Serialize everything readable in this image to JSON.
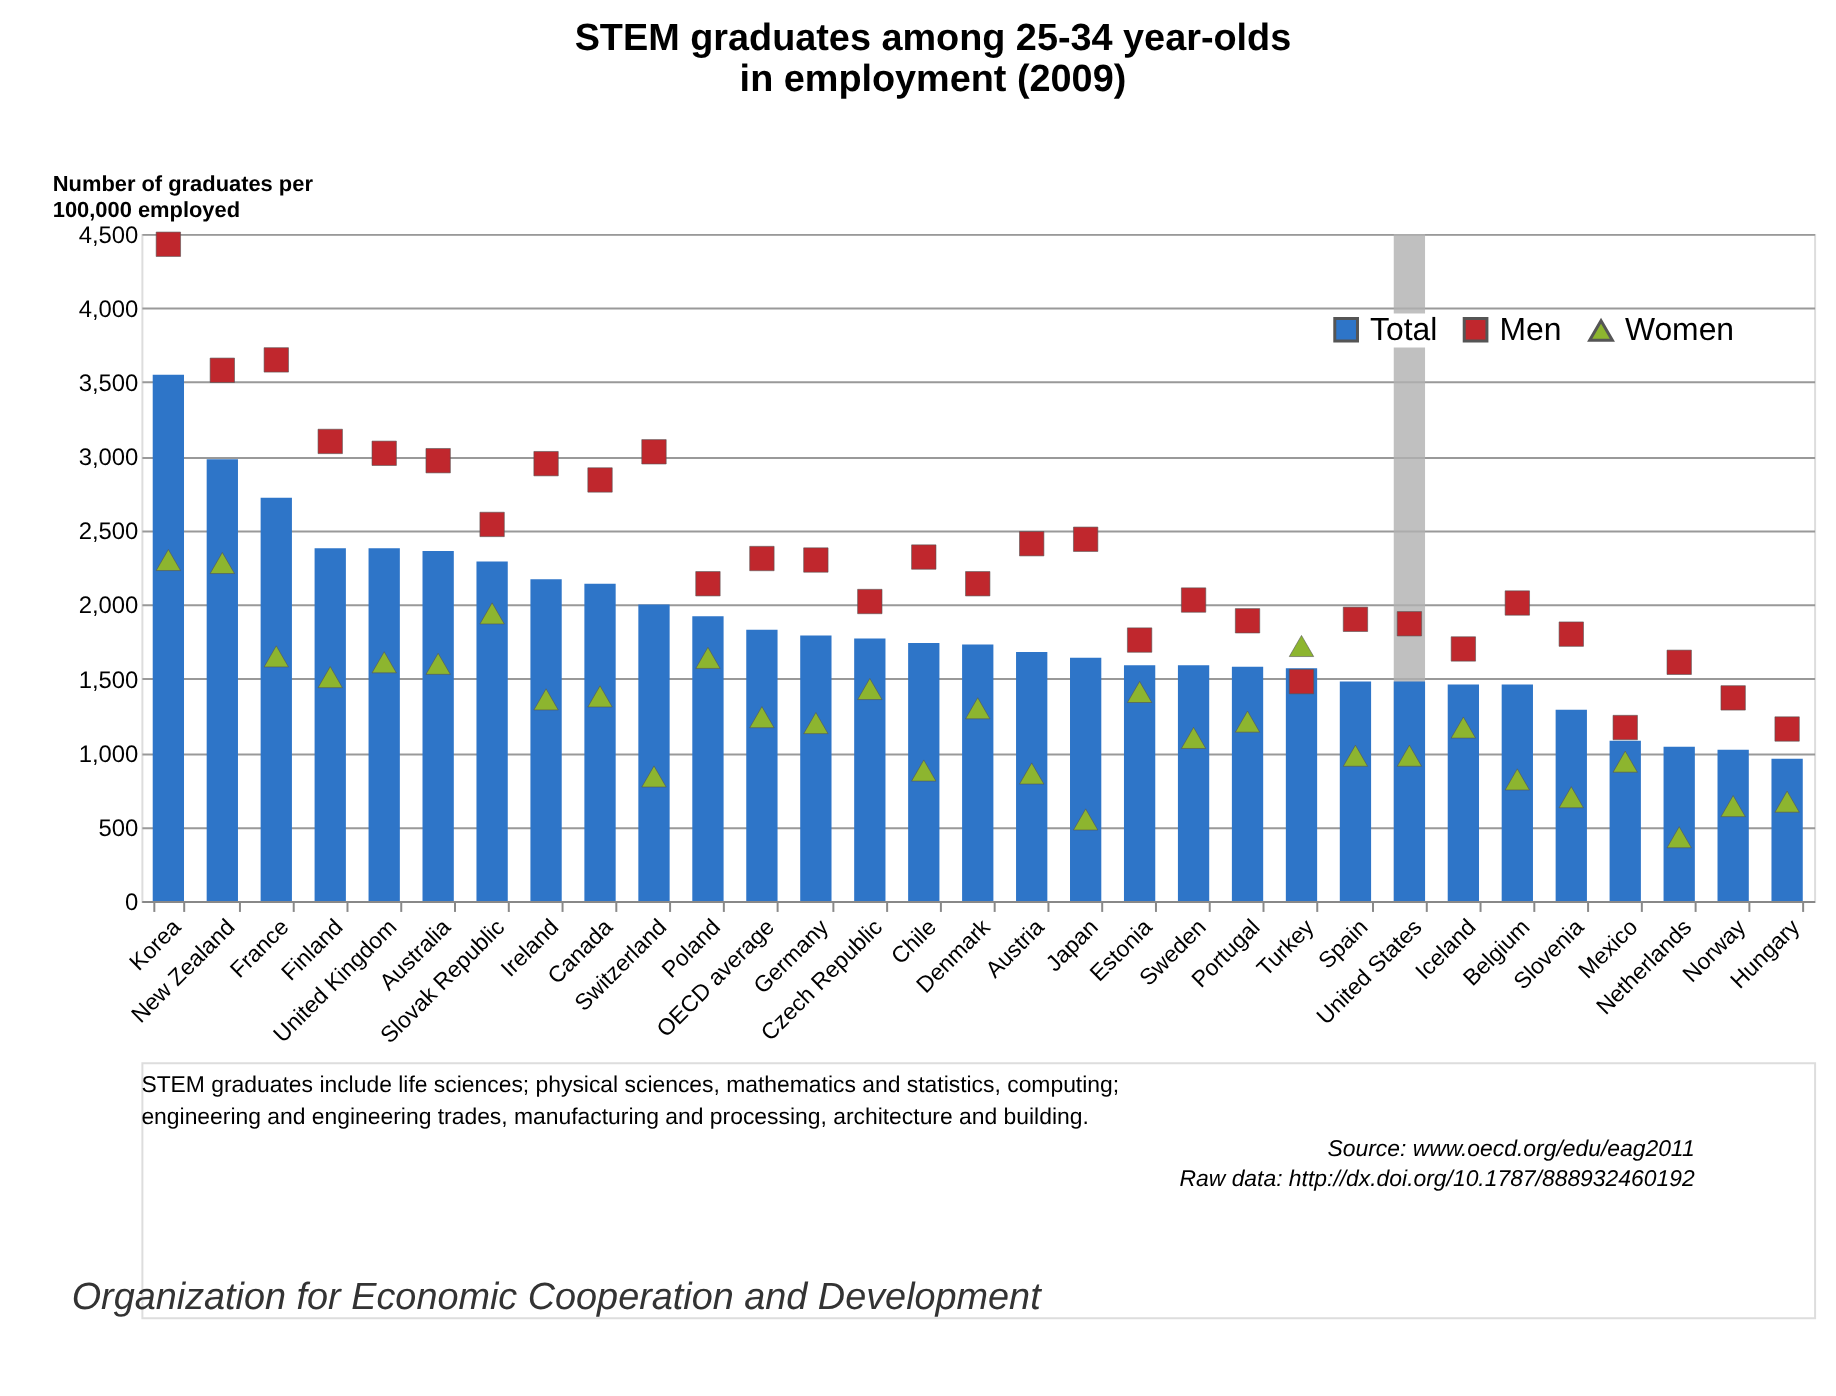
{
  "chart_data": {
    "type": "bar",
    "title": [
      "STEM graduates among 25-34 year-olds",
      "in employment (2009)"
    ],
    "ylabel": "Number of graduates per 100,000 employed",
    "categories": [
      "Korea",
      "New Zealand",
      "France",
      "Finland",
      "United Kingdom",
      "Australia",
      "Slovak Republic",
      "Ireland",
      "Canada",
      "Switzerland",
      "Poland",
      "OECD average",
      "Germany",
      "Czech Republic",
      "Chile",
      "Denmark",
      "Austria",
      "Japan",
      "Estonia",
      "Sweden",
      "Portugal",
      "Turkey",
      "Spain",
      "United States",
      "Iceland",
      "Belgium",
      "Slovenia",
      "Mexico",
      "Netherlands",
      "Norway",
      "Hungary"
    ],
    "series": [
      {
        "name": "Total",
        "color": "#2e75c8",
        "values": [
          3550,
          2980,
          2720,
          2380,
          2380,
          2360,
          2290,
          2170,
          2140,
          2000,
          1920,
          1830,
          1790,
          1770,
          1740,
          1730,
          1680,
          1640,
          1590,
          1590,
          1580,
          1570,
          1480,
          1480,
          1460,
          1460,
          1290,
          1080,
          1040,
          1020,
          960
        ]
      },
      {
        "name": "Men",
        "type": "scatter",
        "marker": "square",
        "color": "#c0272d",
        "values": [
          4430,
          3580,
          3650,
          3100,
          3020,
          2970,
          2540,
          2950,
          2840,
          3030,
          2140,
          2310,
          2300,
          2020,
          2320,
          2140,
          2410,
          2440,
          1760,
          2030,
          1890,
          1480,
          1900,
          1870,
          1700,
          2010,
          1800,
          1170,
          1610,
          1370,
          1160
        ]
      },
      {
        "name": "Women",
        "type": "scatter",
        "marker": "triangle",
        "color": "#8db52f",
        "values": [
          2300,
          2280,
          1650,
          1510,
          1610,
          1600,
          1940,
          1360,
          1380,
          840,
          1640,
          1240,
          1200,
          1430,
          880,
          1300,
          860,
          550,
          1410,
          1100,
          1210,
          1720,
          980,
          980,
          1170,
          820,
          700,
          940,
          430,
          640,
          670
        ]
      }
    ],
    "ylim": [
      0,
      4500
    ],
    "yticks": [
      {
        "value": 0,
        "label": "0"
      },
      {
        "value": 500,
        "label": "500"
      },
      {
        "value": 1000,
        "label": "1,000"
      },
      {
        "value": 1500,
        "label": "1,500"
      },
      {
        "value": 2000,
        "label": "2,000"
      },
      {
        "value": 2500,
        "label": "2,500"
      },
      {
        "value": 3000,
        "label": "3,000"
      },
      {
        "value": 3500,
        "label": "3,500"
      },
      {
        "value": 4000,
        "label": "4,000"
      },
      {
        "value": 4500,
        "label": "4,500"
      }
    ],
    "grid": "y",
    "legend": "top right",
    "bands": [
      {
        "axis": "x",
        "from": "United States",
        "to": "United States",
        "color": "#b0b0b0"
      }
    ],
    "annotations": [
      "STEM graduates include life sciences; physical sciences, mathematics and statistics, computing;",
      "engineering and engineering trades, manufacturing and processing, architecture and building.",
      "Source: www.oecd.org/edu/eag2011",
      "Raw data: http://dx.doi.org/10.1787/888932460192",
      "Organization for Economic Cooperation and Development"
    ]
  }
}
